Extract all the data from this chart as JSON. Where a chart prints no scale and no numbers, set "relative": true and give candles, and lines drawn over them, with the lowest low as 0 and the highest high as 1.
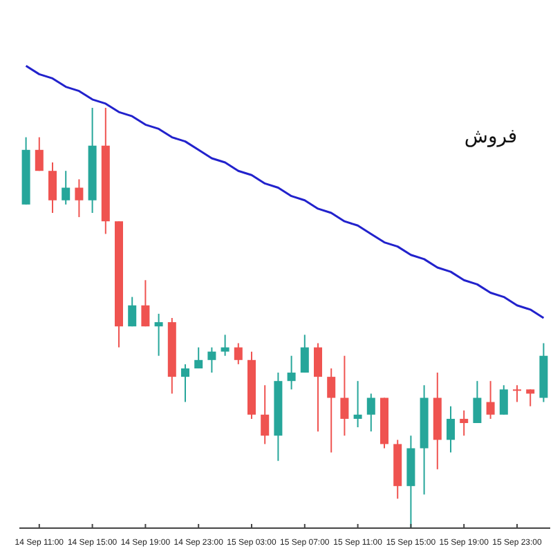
{
  "chart_data": {
    "type": "candlestick",
    "relative": true,
    "categories": [
      null,
      "14 Sep 11:00",
      null,
      null,
      null,
      "14 Sep 15:00",
      null,
      null,
      null,
      "14 Sep 19:00",
      null,
      null,
      null,
      "14 Sep 23:00",
      null,
      null,
      null,
      "15 Sep 03:00",
      null,
      null,
      null,
      "15 Sep 07:00",
      null,
      null,
      null,
      "15 Sep 11:00",
      null,
      null,
      null,
      "15 Sep 15:00",
      null,
      null,
      null,
      "15 Sep 19:00",
      null,
      null,
      null,
      "15 Sep 23:00",
      null,
      null
    ],
    "ohlc": [
      [
        0.77,
        0.93,
        0.77,
        0.9
      ],
      [
        0.9,
        0.93,
        0.85,
        0.85
      ],
      [
        0.85,
        0.87,
        0.75,
        0.78
      ],
      [
        0.78,
        0.85,
        0.77,
        0.81
      ],
      [
        0.81,
        0.83,
        0.74,
        0.78
      ],
      [
        0.78,
        1,
        0.75,
        0.91
      ],
      [
        0.91,
        1,
        0.7,
        0.73
      ],
      [
        0.73,
        0.73,
        0.43,
        0.48
      ],
      [
        0.48,
        0.55,
        0.48,
        0.53
      ],
      [
        0.53,
        0.59,
        0.48,
        0.48
      ],
      [
        0.48,
        0.51,
        0.41,
        0.49
      ],
      [
        0.49,
        0.5,
        0.32,
        0.36
      ],
      [
        0.36,
        0.39,
        0.3,
        0.38
      ],
      [
        0.38,
        0.43,
        0.38,
        0.4
      ],
      [
        0.4,
        0.43,
        0.37,
        0.42
      ],
      [
        0.42,
        0.46,
        0.41,
        0.43
      ],
      [
        0.43,
        0.44,
        0.39,
        0.4
      ],
      [
        0.4,
        0.42,
        0.26,
        0.27
      ],
      [
        0.27,
        0.34,
        0.2,
        0.22
      ],
      [
        0.22,
        0.37,
        0.16,
        0.35
      ],
      [
        0.35,
        0.41,
        0.33,
        0.37
      ],
      [
        0.37,
        0.46,
        0.37,
        0.43
      ],
      [
        0.43,
        0.44,
        0.23,
        0.36
      ],
      [
        0.36,
        0.38,
        0.18,
        0.31
      ],
      [
        0.31,
        0.41,
        0.22,
        0.26
      ],
      [
        0.26,
        0.35,
        0.24,
        0.27
      ],
      [
        0.27,
        0.32,
        0.23,
        0.31
      ],
      [
        0.31,
        0.31,
        0.19,
        0.2
      ],
      [
        0.2,
        0.21,
        0.07,
        0.1
      ],
      [
        0.1,
        0.22,
        0,
        0.19
      ],
      [
        0.19,
        0.34,
        0.08,
        0.31
      ],
      [
        0.31,
        0.37,
        0.14,
        0.21
      ],
      [
        0.21,
        0.29,
        0.18,
        0.26
      ],
      [
        0.26,
        0.28,
        0.22,
        0.25
      ],
      [
        0.25,
        0.35,
        0.25,
        0.31
      ],
      [
        0.3,
        0.35,
        0.26,
        0.27
      ],
      [
        0.27,
        0.34,
        0.27,
        0.33
      ],
      [
        0.33,
        0.34,
        0.3,
        0.33
      ],
      [
        0.33,
        0.33,
        0.29,
        0.32
      ],
      [
        0.31,
        0.44,
        0.3,
        0.41
      ]
    ],
    "colors": [
      "#26a69a",
      "#ef5350",
      "#ef5350",
      "#26a69a",
      "#ef5350",
      "#26a69a",
      "#ef5350",
      "#ef5350",
      "#26a69a",
      "#ef5350",
      "#26a69a",
      "#ef5350",
      "#26a69a",
      "#26a69a",
      "#26a69a",
      "#26a69a",
      "#ef5350",
      "#ef5350",
      "#ef5350",
      "#26a69a",
      "#26a69a",
      "#26a69a",
      "#ef5350",
      "#ef5350",
      "#ef5350",
      "#26a69a",
      "#26a69a",
      "#ef5350",
      "#ef5350",
      "#26a69a",
      "#26a69a",
      "#ef5350",
      "#26a69a",
      "#ef5350",
      "#26a69a",
      "#ef5350",
      "#26a69a",
      "#ef5350",
      "#ef5350",
      "#26a69a"
    ],
    "series": [
      {
        "type": "line",
        "color": "#2222cc",
        "values": [
          1.1,
          1.08,
          1.07,
          1.05,
          1.04,
          1.02,
          1.01,
          0.99,
          0.98,
          0.96,
          0.95,
          0.93,
          0.92,
          0.9,
          0.88,
          0.87,
          0.85,
          0.84,
          0.82,
          0.81,
          0.79,
          0.78,
          0.76,
          0.75,
          0.73,
          0.72,
          0.7,
          0.68,
          0.67,
          0.65,
          0.64,
          0.62,
          0.61,
          0.59,
          0.58,
          0.56,
          0.55,
          0.53,
          0.52,
          0.5
        ]
      }
    ],
    "annotations": [
      "فروش"
    ]
  }
}
